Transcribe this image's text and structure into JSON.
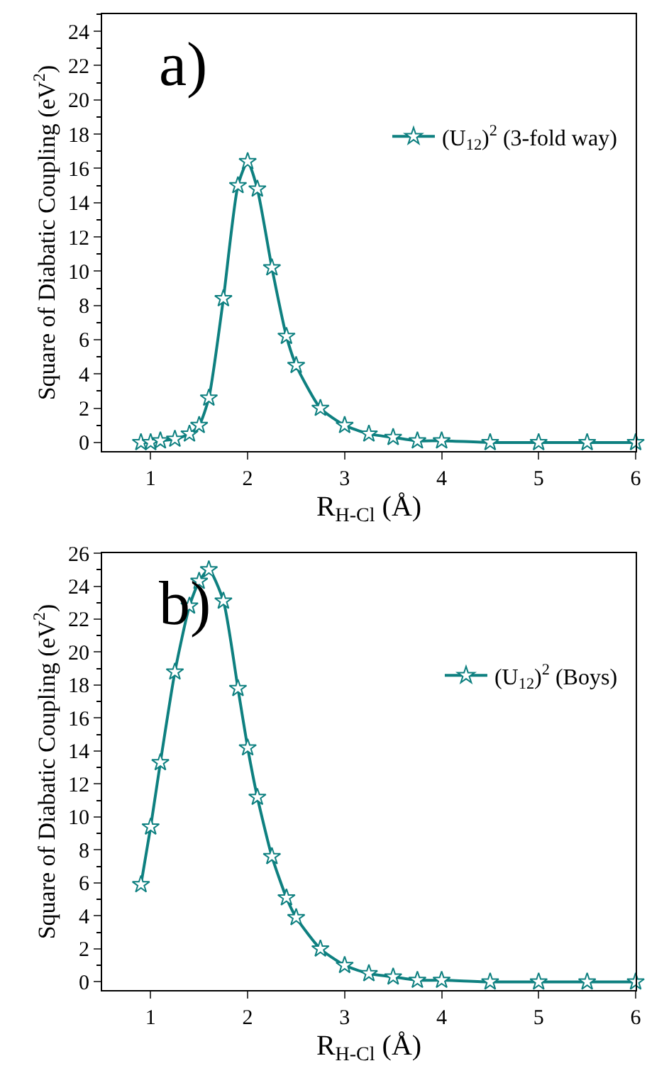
{
  "chart_data": [
    {
      "type": "line",
      "annotations": [
        "a)"
      ],
      "xlabel": "R$_{H-Cl}$ (Å)",
      "ylabel": "Square of Diabatic Coupling (eV$^{2}$)",
      "x": [
        0.9,
        1.0,
        1.1,
        1.25,
        1.4,
        1.5,
        1.6,
        1.75,
        1.9,
        2.0,
        2.1,
        2.25,
        2.4,
        2.5,
        2.75,
        3.0,
        3.25,
        3.5,
        3.75,
        4.0,
        4.5,
        5.0,
        5.5,
        6.0
      ],
      "series": [
        {
          "name": "(U$_{12}$)$^{2}$ (3-fold way)",
          "color": "#0e8080",
          "values": [
            0,
            0,
            0.1,
            0.2,
            0.5,
            1.0,
            2.6,
            8.4,
            15.0,
            16.4,
            14.8,
            10.2,
            6.2,
            4.5,
            2.0,
            1.0,
            0.5,
            0.3,
            0.1,
            0.1,
            0,
            0,
            0,
            0
          ]
        }
      ],
      "xlim": [
        0.5,
        6
      ],
      "xticks": [
        1,
        2,
        3,
        4,
        5,
        6
      ],
      "ylim": [
        -0.5,
        25
      ],
      "yticks": [
        0,
        2,
        4,
        6,
        8,
        10,
        12,
        14,
        16,
        18,
        20,
        22,
        24
      ],
      "grid": false,
      "legend": "right",
      "marker": "star",
      "line_style": "solid"
    },
    {
      "type": "line",
      "annotations": [
        "b)"
      ],
      "xlabel": "R$_{H-Cl}$ (Å)",
      "ylabel": "Square of Diabatic Coupling (eV$^{2}$)",
      "x": [
        0.9,
        1.0,
        1.1,
        1.25,
        1.4,
        1.5,
        1.6,
        1.75,
        1.9,
        2.0,
        2.1,
        2.25,
        2.4,
        2.5,
        2.75,
        3.0,
        3.25,
        3.5,
        3.75,
        4.0,
        4.5,
        5.0,
        5.5,
        6.0
      ],
      "series": [
        {
          "name": "(U$_{12}$)$^{2}$ (Boys)",
          "color": "#0e8080",
          "values": [
            5.9,
            9.4,
            13.3,
            18.8,
            22.8,
            24.3,
            25.0,
            23.1,
            17.8,
            14.2,
            11.2,
            7.6,
            5.1,
            3.9,
            2.0,
            1.0,
            0.5,
            0.3,
            0.1,
            0.1,
            0,
            0,
            0,
            0
          ]
        }
      ],
      "xlim": [
        0.5,
        6
      ],
      "xticks": [
        1,
        2,
        3,
        4,
        5,
        6
      ],
      "ylim": [
        -0.5,
        26
      ],
      "yticks": [
        0,
        2,
        4,
        6,
        8,
        10,
        12,
        14,
        16,
        18,
        20,
        22,
        24,
        26
      ],
      "grid": false,
      "legend": "right",
      "marker": "star",
      "line_style": "solid"
    }
  ]
}
